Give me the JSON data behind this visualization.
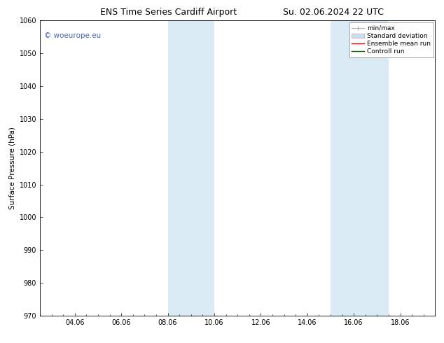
{
  "title_left": "ENS Time Series Cardiff Airport",
  "title_right": "Su. 02.06.2024 22 UTC",
  "ylabel": "Surface Pressure (hPa)",
  "ylim": [
    970,
    1060
  ],
  "yticks": [
    970,
    980,
    990,
    1000,
    1010,
    1020,
    1030,
    1040,
    1050,
    1060
  ],
  "xtick_labels": [
    "04.06",
    "06.06",
    "08.06",
    "10.06",
    "12.06",
    "14.06",
    "16.06",
    "18.06"
  ],
  "xtick_positions": [
    4,
    6,
    8,
    10,
    12,
    14,
    16,
    18
  ],
  "xmin": 2.5,
  "xmax": 19.5,
  "shaded_regions": [
    {
      "xmin": 8.0,
      "xmax": 10.0,
      "color": "#daeaf5"
    },
    {
      "xmin": 15.0,
      "xmax": 17.5,
      "color": "#daeaf5"
    }
  ],
  "watermark_text": "© woeurope.eu",
  "watermark_color": "#4466cc",
  "background_color": "#ffffff",
  "plot_bg_color": "#ffffff",
  "legend_items": [
    {
      "label": "min/max"
    },
    {
      "label": "Standard deviation"
    },
    {
      "label": "Ensemble mean run"
    },
    {
      "label": "Controll run"
    }
  ],
  "title_fontsize": 9,
  "axis_label_fontsize": 7.5,
  "tick_fontsize": 7,
  "legend_fontsize": 6.5,
  "watermark_fontsize": 7.5
}
